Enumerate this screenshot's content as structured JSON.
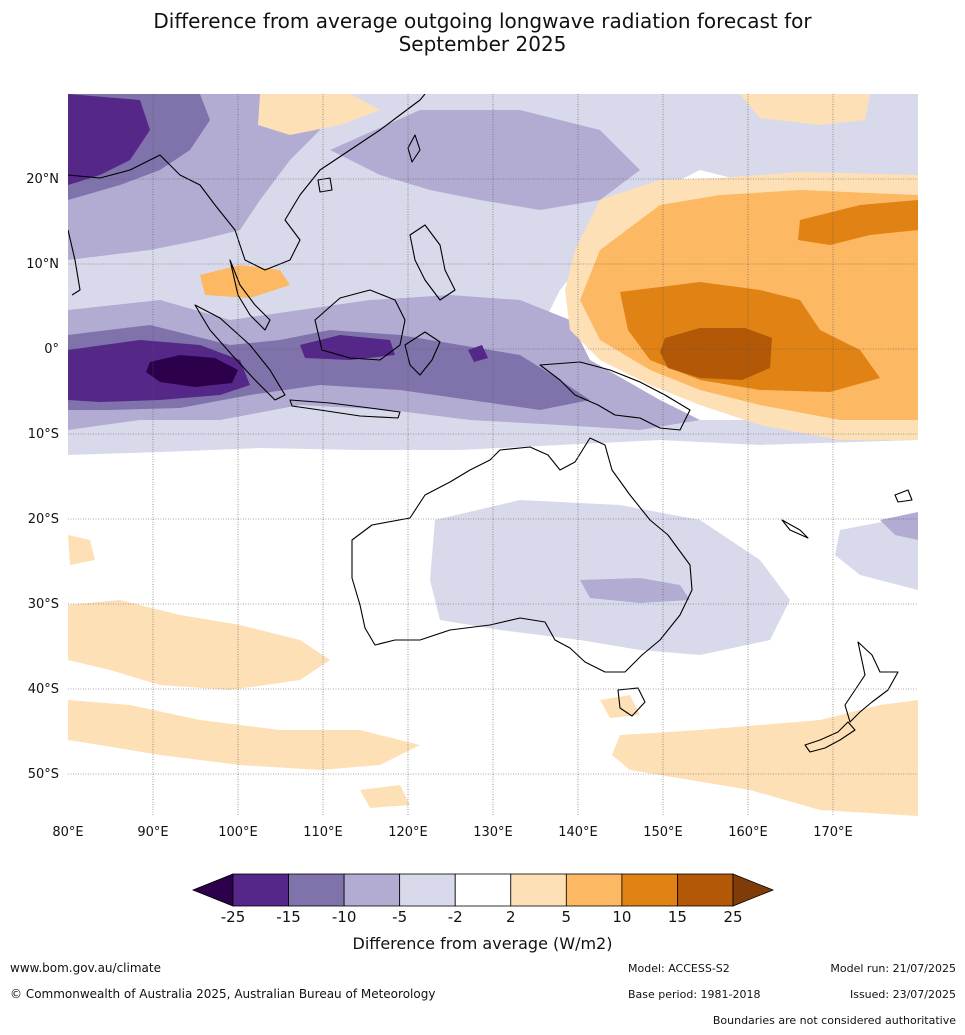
{
  "title": {
    "line1": "Difference from average outgoing longwave radiation forecast for",
    "line2": "September 2025"
  },
  "map": {
    "lon_range": [
      80,
      180
    ],
    "lat_range": [
      -55,
      30
    ],
    "lon_ticks": [
      "80°E",
      "90°E",
      "100°E",
      "110°E",
      "120°E",
      "130°E",
      "140°E",
      "150°E",
      "160°E",
      "170°E"
    ],
    "lat_ticks": [
      "20°N",
      "10°N",
      "0°",
      "10°S",
      "20°S",
      "30°S",
      "40°S",
      "50°S"
    ]
  },
  "colorbar": {
    "label": "Difference from average (W/m2)",
    "ticks": [
      "-25",
      "-15",
      "-10",
      "-5",
      "-2",
      "2",
      "5",
      "10",
      "15",
      "25"
    ],
    "colors": [
      "#2d004b",
      "#542788",
      "#8073ac",
      "#b2abd2",
      "#d8daeb",
      "#ffffff",
      "#fee0b6",
      "#fdb863",
      "#e08214",
      "#b35806",
      "#7f3b08"
    ]
  },
  "footer": {
    "website": "www.bom.gov.au/climate",
    "copyright": "© Commonwealth of Australia 2025, Australian Bureau of Meteorology",
    "model": "Model: ACCESS-S2",
    "base_period": "Base period: 1981-2018",
    "model_run": "Model run: 21/07/2025",
    "issued": "Issued: 23/07/2025",
    "boundaries": "Boundaries are not considered authoritative"
  }
}
